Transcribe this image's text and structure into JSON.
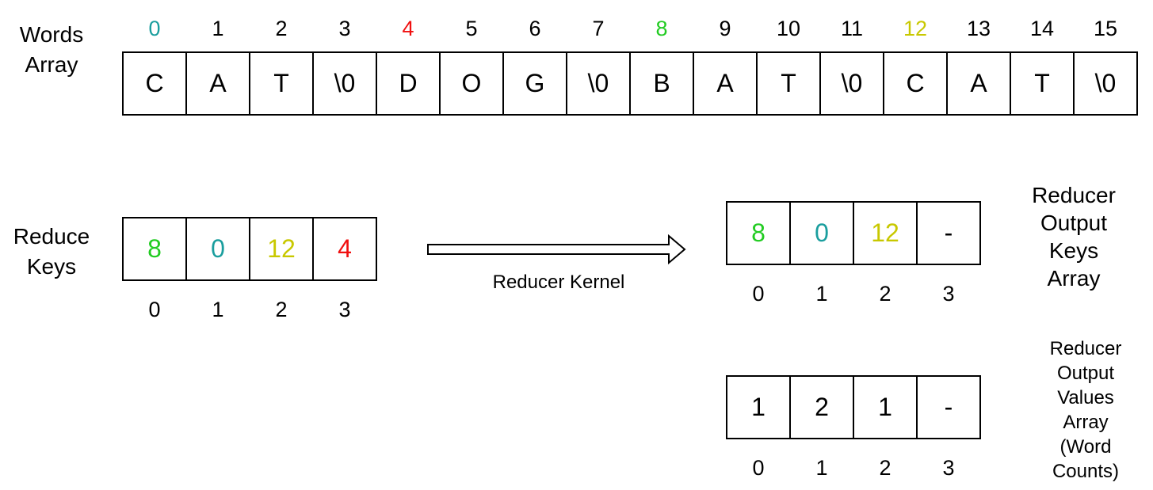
{
  "colors": {
    "teal": "#1a9e9e",
    "red": "#f01010",
    "green": "#22cc22",
    "yellow": "#c8c800",
    "black": "#000000"
  },
  "words_array": {
    "title_line1": "Words",
    "title_line2": "Array",
    "indices": [
      {
        "text": "0",
        "color": "teal"
      },
      {
        "text": "1",
        "color": "black"
      },
      {
        "text": "2",
        "color": "black"
      },
      {
        "text": "3",
        "color": "black"
      },
      {
        "text": "4",
        "color": "red"
      },
      {
        "text": "5",
        "color": "black"
      },
      {
        "text": "6",
        "color": "black"
      },
      {
        "text": "7",
        "color": "black"
      },
      {
        "text": "8",
        "color": "green"
      },
      {
        "text": "9",
        "color": "black"
      },
      {
        "text": "10",
        "color": "black"
      },
      {
        "text": "11",
        "color": "black"
      },
      {
        "text": "12",
        "color": "yellow"
      },
      {
        "text": "13",
        "color": "black"
      },
      {
        "text": "14",
        "color": "black"
      },
      {
        "text": "15",
        "color": "black"
      }
    ],
    "cells": [
      "C",
      "A",
      "T",
      "\\0",
      "D",
      "O",
      "G",
      "\\0",
      "B",
      "A",
      "T",
      "\\0",
      "C",
      "A",
      "T",
      "\\0"
    ]
  },
  "reduce_keys": {
    "title_line1": "Reduce",
    "title_line2": "Keys",
    "cells": [
      {
        "text": "8",
        "color": "green"
      },
      {
        "text": "0",
        "color": "teal"
      },
      {
        "text": "12",
        "color": "yellow"
      },
      {
        "text": "4",
        "color": "red"
      }
    ],
    "indices": [
      "0",
      "1",
      "2",
      "3"
    ]
  },
  "kernel": {
    "label": "Reducer Kernel"
  },
  "output_keys": {
    "title_lines": [
      "Reducer",
      "Output",
      "Keys",
      "Array"
    ],
    "cells": [
      {
        "text": "8",
        "color": "green"
      },
      {
        "text": "0",
        "color": "teal"
      },
      {
        "text": "12",
        "color": "yellow"
      },
      {
        "text": "-",
        "color": "black"
      }
    ],
    "indices": [
      "0",
      "1",
      "2",
      "3"
    ]
  },
  "output_values": {
    "title_lines": [
      "Reducer",
      "Output",
      "Values",
      "Array",
      "(Word",
      "Counts)"
    ],
    "cells": [
      {
        "text": "1",
        "color": "black"
      },
      {
        "text": "2",
        "color": "black"
      },
      {
        "text": "1",
        "color": "black"
      },
      {
        "text": "-",
        "color": "black"
      }
    ],
    "indices": [
      "0",
      "1",
      "2",
      "3"
    ]
  }
}
